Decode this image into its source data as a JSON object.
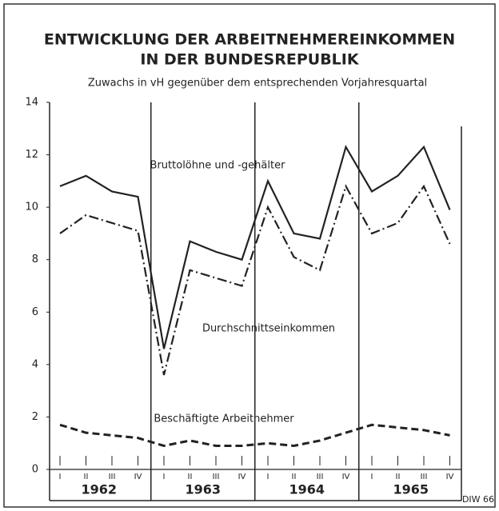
{
  "chart_data": {
    "type": "line",
    "title": [
      "ENTWICKLUNG DER ARBEITNEHMEREINKOMMEN",
      "IN DER BUNDESREPUBLIK"
    ],
    "subtitle": "Zuwachs in vH gegenüber dem entsprechenden Vorjahresquartal",
    "categories": [
      "I",
      "II",
      "III",
      "IV",
      "I",
      "II",
      "III",
      "IV",
      "I",
      "II",
      "III",
      "IV",
      "I",
      "II",
      "III",
      "IV"
    ],
    "years": [
      "1962",
      "1963",
      "1964",
      "1965"
    ],
    "series": [
      {
        "name": "Bruttolöhne und -gehälter",
        "color": "#222",
        "dash": "solid",
        "values": [
          10.8,
          11.2,
          10.6,
          10.4,
          4.6,
          8.7,
          8.3,
          8.0,
          11.0,
          9.0,
          8.8,
          12.3,
          10.6,
          11.2,
          12.3,
          9.9
        ]
      },
      {
        "name": "Durchschnittseinkommen",
        "color": "#222",
        "dash": "dashdot",
        "values": [
          9.0,
          9.7,
          9.4,
          9.1,
          3.6,
          7.6,
          7.3,
          7.0,
          10.0,
          8.1,
          7.6,
          10.8,
          9.0,
          9.4,
          10.8,
          8.6
        ]
      },
      {
        "name": "Beschäftigte Arbeitnehmer",
        "color": "#222",
        "dash": "dashed",
        "values": [
          1.7,
          1.4,
          1.3,
          1.2,
          0.9,
          1.1,
          0.9,
          0.9,
          1.0,
          0.9,
          1.1,
          1.4,
          1.7,
          1.6,
          1.5,
          1.3
        ]
      }
    ],
    "ylim": [
      0,
      14
    ],
    "yticks": [
      0,
      2,
      4,
      6,
      8,
      10,
      12,
      14
    ],
    "grid": false,
    "source": "DIW 66"
  }
}
